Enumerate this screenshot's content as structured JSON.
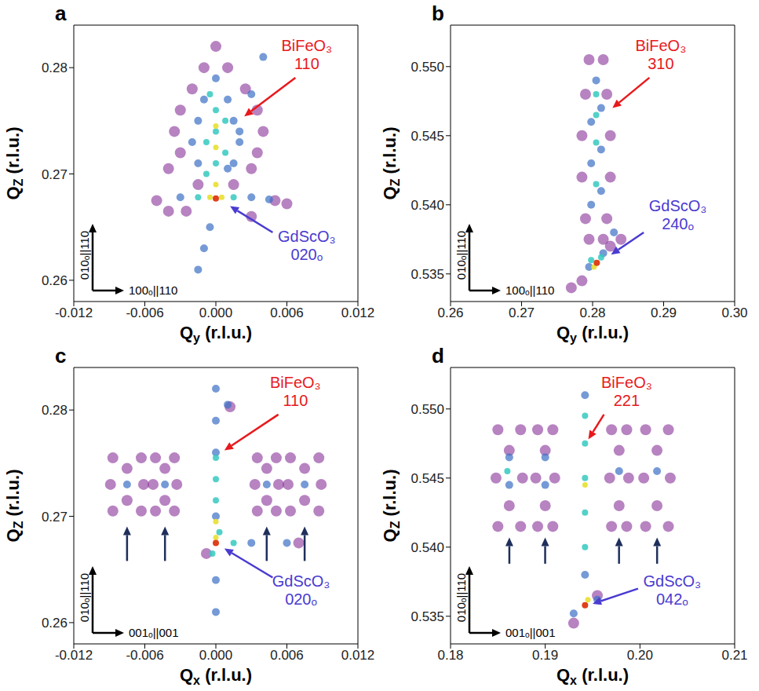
{
  "chart_data": [
    {
      "type": "scatter",
      "panel": "a",
      "xlabel": "Qy (r.l.u.)",
      "ylabel": "QZ (r.l.u.)",
      "grid": false,
      "xlim": [
        -0.012,
        0.012
      ],
      "xticks": [
        -0.012,
        -0.006,
        {
          "value": 0,
          "label": "0.000"
        },
        0.006,
        0.012
      ],
      "ylim": [
        0.258,
        0.284
      ],
      "yticks": [
        0.26,
        0.27,
        0.28
      ],
      "directions": {
        "y": "010ₒ||110",
        "x": "100ₒ||110"
      },
      "annotations": [
        {
          "lines": [
            "BiFeO₃",
            "110"
          ],
          "color": "#e8191c"
        },
        {
          "lines": [
            "GdScO₃",
            "020ₒ"
          ],
          "color": "#4a3bd1"
        }
      ],
      "series": [
        {
          "color": "#7b1e8e",
          "marker": "circle",
          "x": [
            -0.004,
            -0.003,
            -0.0035,
            -0.003,
            -0.002,
            0.003,
            0.0035,
            0.004,
            0.0035,
            0.0025,
            -0.001,
            0.001,
            -0.0015,
            0.0015,
            -0.005,
            0.005,
            0.006,
            -0.004,
            0,
            -0.0025,
            0.003
          ],
          "values": [
            0.2705,
            0.272,
            0.274,
            0.276,
            0.278,
            0.2705,
            0.272,
            0.274,
            0.276,
            0.278,
            0.28,
            0.28,
            0.269,
            0.269,
            0.2675,
            0.2675,
            0.2672,
            0.2665,
            0.282,
            0.2665,
            0.266
          ]
        },
        {
          "color": "#3a6fc4",
          "marker": "circle",
          "x": [
            -0.0015,
            -0.002,
            -0.0015,
            -0.001,
            0.0015,
            0.002,
            0.0015,
            0.001,
            0,
            -0.003,
            0.003,
            0.0045,
            -0.0015,
            -0.001,
            -0.0005,
            0.001,
            0.002,
            0.003,
            0.004
          ],
          "values": [
            0.271,
            0.273,
            0.275,
            0.277,
            0.271,
            0.273,
            0.275,
            0.277,
            0.279,
            0.2678,
            0.2678,
            0.2676,
            0.261,
            0.263,
            0.265,
            0.2705,
            0.274,
            0.2775,
            0.281
          ]
        },
        {
          "color": "#35c9c0",
          "marker": "circle",
          "x": [
            -0.0008,
            0,
            0.0008,
            -0.0008,
            0,
            0.0008,
            0,
            -0.0005,
            -0.0015,
            0.0015
          ],
          "values": [
            0.27,
            0.271,
            0.272,
            0.273,
            0.274,
            0.275,
            0.276,
            0.2775,
            0.2678,
            0.2678
          ]
        },
        {
          "color": "#e8e23a",
          "marker": "circle",
          "x": [
            0,
            0,
            0,
            -0.0005,
            0.0005
          ],
          "values": [
            0.269,
            0.2725,
            0.2745,
            0.2678,
            0.2678
          ]
        },
        {
          "color": "#e0401c",
          "marker": "circle",
          "x": [
            0
          ],
          "values": [
            0.2677
          ]
        }
      ]
    },
    {
      "type": "scatter",
      "panel": "b",
      "xlabel": "Qy (r.l.u.)",
      "ylabel": "QZ (r.l.u.)",
      "grid": false,
      "xlim": [
        0.26,
        0.3
      ],
      "xticks": [
        0.26,
        0.27,
        0.28,
        0.29,
        {
          "value": 0.3,
          "label": "0.30"
        }
      ],
      "ylim": [
        0.533,
        0.553
      ],
      "yticks": [
        0.535,
        {
          "value": 0.54,
          "label": "0.540"
        },
        0.545,
        {
          "value": 0.55,
          "label": "0.550"
        }
      ],
      "directions": {
        "y": "010ₒ||110",
        "x": "100ₒ||110"
      },
      "annotations": [
        {
          "lines": [
            "BiFeO₃",
            "310"
          ],
          "color": "#e8191c"
        },
        {
          "lines": [
            "GdScO₃",
            "240ₒ"
          ],
          "color": "#4a3bd1"
        }
      ],
      "series": [
        {
          "color": "#7b1e8e",
          "marker": "circle",
          "x": [
            0.279,
            0.282,
            0.2785,
            0.2825,
            0.2785,
            0.2825,
            0.279,
            0.282,
            0.2795,
            0.2815,
            0.2795,
            0.2815,
            0.277,
            0.284,
            0.2785,
            0.2825
          ],
          "values": [
            0.539,
            0.539,
            0.542,
            0.542,
            0.545,
            0.545,
            0.548,
            0.548,
            0.5505,
            0.5505,
            0.5375,
            0.5375,
            0.534,
            0.5375,
            0.5345,
            0.537
          ]
        },
        {
          "color": "#3a6fc4",
          "marker": "circle",
          "x": [
            0.2798,
            0.2812,
            0.2798,
            0.2812,
            0.2798,
            0.2812,
            0.2805,
            0.2795,
            0.2815,
            0.283
          ],
          "values": [
            0.54,
            0.541,
            0.543,
            0.544,
            0.546,
            0.547,
            0.549,
            0.5355,
            0.5365,
            0.538
          ]
        },
        {
          "color": "#35c9c0",
          "marker": "circle",
          "x": [
            0.2805,
            0.2805,
            0.2805,
            0.2805,
            0.2798,
            0.2812
          ],
          "values": [
            0.5415,
            0.5445,
            0.5465,
            0.548,
            0.536,
            0.5362
          ]
        },
        {
          "color": "#e8e23a",
          "marker": "circle",
          "x": [
            0.2805,
            0.2802
          ],
          "values": [
            0.5358,
            0.5355
          ]
        },
        {
          "color": "#e0401c",
          "marker": "circle",
          "x": [
            0.2806
          ],
          "values": [
            0.5358
          ]
        }
      ]
    },
    {
      "type": "scatter",
      "panel": "c",
      "xlabel": "Qx (r.l.u.)",
      "ylabel": "QZ (r.l.u.)",
      "grid": false,
      "xlim": [
        -0.012,
        0.012
      ],
      "xticks": [
        -0.012,
        -0.006,
        {
          "value": 0,
          "label": "0.000"
        },
        0.006,
        0.012
      ],
      "ylim": [
        0.258,
        0.284
      ],
      "yticks": [
        0.26,
        0.27,
        0.28
      ],
      "directions": {
        "y": "010ₒ||110",
        "x": "001ₒ||001"
      },
      "annotations": [
        {
          "lines": [
            "BiFeO₃",
            "110"
          ],
          "color": "#e8191c"
        },
        {
          "lines": [
            "GdScO₃",
            "020ₒ"
          ],
          "color": "#4a3bd1"
        }
      ],
      "series": [
        {
          "color": "#7b1e8e",
          "marker": "circle",
          "x": [
            -0.0087,
            -0.0063,
            -0.0089,
            -0.0061,
            -0.0087,
            -0.0063,
            -0.0075,
            -0.0075,
            -0.0051,
            -0.0035,
            -0.0053,
            -0.0033,
            -0.0051,
            -0.0035,
            -0.0043,
            -0.0043,
            0.0035,
            0.0051,
            0.0033,
            0.0053,
            0.0035,
            0.0051,
            0.0043,
            0.0043,
            0.0063,
            0.0087,
            0.0061,
            0.0089,
            0.0063,
            0.0087,
            0.0075,
            0.0075,
            0.0012,
            0.007,
            -0.0008
          ],
          "values": [
            0.2705,
            0.2705,
            0.273,
            0.273,
            0.2755,
            0.2755,
            0.2715,
            0.2745,
            0.2705,
            0.2705,
            0.273,
            0.273,
            0.2755,
            0.2755,
            0.2715,
            0.2745,
            0.2705,
            0.2705,
            0.273,
            0.273,
            0.2755,
            0.2755,
            0.2715,
            0.2745,
            0.2705,
            0.2705,
            0.273,
            0.273,
            0.2755,
            0.2755,
            0.2715,
            0.2745,
            0.2803,
            0.2675,
            0.2665
          ]
        },
        {
          "color": "#3a6fc4",
          "marker": "circle",
          "x": [
            -0.0075,
            -0.0043,
            0.0043,
            0.0075,
            0,
            0,
            0,
            0,
            0,
            0,
            0.003,
            0.006,
            0.001
          ],
          "values": [
            0.273,
            0.273,
            0.273,
            0.273,
            0.261,
            0.264,
            0.27,
            0.276,
            0.279,
            0.282,
            0.2675,
            0.2675,
            0.2805
          ]
        },
        {
          "color": "#35c9c0",
          "marker": "circle",
          "x": [
            0,
            0,
            0,
            -0.0003,
            0.0003,
            0.0015
          ],
          "values": [
            0.2715,
            0.2735,
            0.2755,
            0.2665,
            0.2685,
            0.2675
          ]
        },
        {
          "color": "#e8e23a",
          "marker": "circle",
          "x": [
            0,
            0
          ],
          "values": [
            0.268,
            0.2695
          ]
        },
        {
          "color": "#e0401c",
          "marker": "circle",
          "x": [
            0
          ],
          "values": [
            0.2675
          ]
        }
      ]
    },
    {
      "type": "scatter",
      "panel": "d",
      "xlabel": "Qx (r.l.u.)",
      "ylabel": "QZ (r.l.u.)",
      "grid": false,
      "xlim": [
        0.18,
        0.21
      ],
      "xticks": [
        0.18,
        0.19,
        {
          "value": 0.2,
          "label": "0.20"
        },
        0.21
      ],
      "ylim": [
        0.533,
        0.553
      ],
      "yticks": [
        0.535,
        {
          "value": 0.54,
          "label": "0.540"
        },
        0.545,
        {
          "value": 0.55,
          "label": "0.550"
        }
      ],
      "directions": {
        "y": "010ₒ||110",
        "x": "001ₒ||001"
      },
      "annotations": [
        {
          "lines": [
            "BiFeO₃",
            "221"
          ],
          "color": "#e8191c"
        },
        {
          "lines": [
            "GdScO₃",
            "042ₒ"
          ],
          "color": "#4a3bd1"
        }
      ],
      "series": [
        {
          "color": "#7b1e8e",
          "marker": "circle",
          "x": [
            0.185,
            0.1874,
            0.1848,
            0.1876,
            0.185,
            0.1874,
            0.1862,
            0.1862,
            0.1892,
            0.1908,
            0.189,
            0.191,
            0.1892,
            0.1908,
            0.19,
            0.19,
            0.197,
            0.1986,
            0.1968,
            0.1988,
            0.197,
            0.1986,
            0.1978,
            0.1978,
            0.2006,
            0.203,
            0.2004,
            0.2032,
            0.2006,
            0.203,
            0.2018,
            0.2018,
            0.1955,
            0.193
          ],
          "values": [
            0.5415,
            0.5415,
            0.545,
            0.545,
            0.5485,
            0.5485,
            0.543,
            0.547,
            0.5415,
            0.5415,
            0.545,
            0.545,
            0.5485,
            0.5485,
            0.543,
            0.547,
            0.5415,
            0.5415,
            0.545,
            0.545,
            0.5485,
            0.5485,
            0.543,
            0.547,
            0.5415,
            0.5415,
            0.545,
            0.545,
            0.5485,
            0.5485,
            0.543,
            0.547,
            0.5365,
            0.5345
          ]
        },
        {
          "color": "#3a6fc4",
          "marker": "circle",
          "x": [
            0.1862,
            0.19,
            0.1862,
            0.19,
            0.1978,
            0.2018,
            0.1942,
            0.1942,
            0.1955,
            0.193
          ],
          "values": [
            0.5445,
            0.5445,
            0.5465,
            0.5465,
            0.5455,
            0.5455,
            0.538,
            0.551,
            0.5362,
            0.5352
          ]
        },
        {
          "color": "#35c9c0",
          "marker": "circle",
          "x": [
            0.1942,
            0.1942,
            0.1942,
            0.1942,
            0.1942,
            0.186
          ],
          "values": [
            0.54,
            0.5425,
            0.545,
            0.5475,
            0.5495,
            0.5455
          ]
        },
        {
          "color": "#e8e23a",
          "marker": "circle",
          "x": [
            0.1942,
            0.1945
          ],
          "values": [
            0.5445,
            0.5362
          ]
        },
        {
          "color": "#e0401c",
          "marker": "circle",
          "x": [
            0.1942
          ],
          "values": [
            0.5358
          ]
        }
      ]
    }
  ]
}
